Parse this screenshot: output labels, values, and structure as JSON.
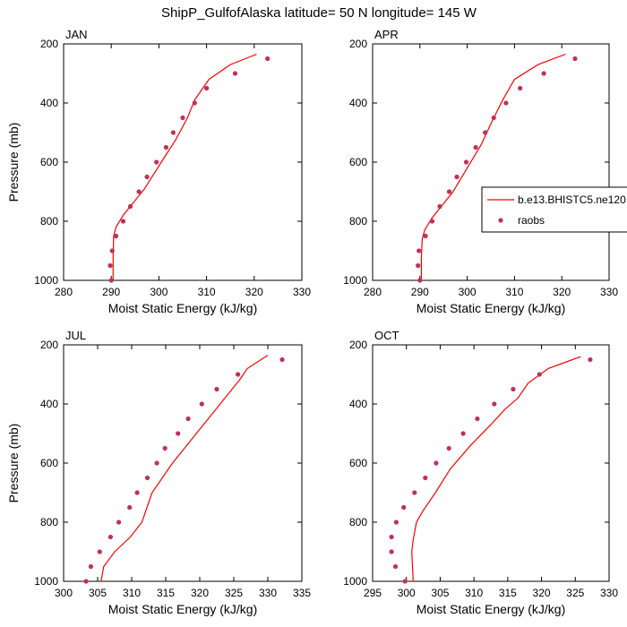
{
  "figure": {
    "title": "ShipP_GulfofAlaska  latitude= 50 N longitude= 145 W",
    "legend": {
      "entries": [
        {
          "label": "b.e13.BHISTC5.ne120",
          "style": "line",
          "color": "#ff0000"
        },
        {
          "label": "raobs",
          "style": "marker",
          "color": "#c0305a"
        }
      ]
    }
  },
  "chart_data": [
    {
      "type": "line",
      "panel": "JAN",
      "xlabel": "Moist Static Energy (kJ/kg)",
      "ylabel": "Pressure (mb)",
      "xlim": [
        280,
        330
      ],
      "ylim": [
        1000,
        200
      ],
      "xticks": [
        280,
        290,
        300,
        310,
        320,
        330
      ],
      "yticks": [
        200,
        400,
        600,
        800,
        1000
      ],
      "model": {
        "x": [
          290.4,
          290.4,
          290.5,
          291.0,
          292.5,
          294.5,
          297.0,
          300.5,
          303.5,
          306.0,
          307.5,
          310.5,
          315.0,
          320.5
        ],
        "y": [
          1000,
          925,
          850,
          820,
          780,
          740,
          690,
          600,
          525,
          450,
          390,
          320,
          270,
          235
        ]
      },
      "raobs": {
        "x": [
          290.0,
          289.8,
          290.2,
          291.0,
          292.5,
          294.0,
          295.8,
          297.5,
          299.5,
          301.5,
          303.0,
          305.0,
          307.5,
          310.0,
          316.0,
          322.8
        ],
        "y": [
          1000,
          950,
          900,
          850,
          800,
          750,
          700,
          650,
          600,
          550,
          500,
          450,
          400,
          350,
          300,
          250
        ]
      }
    },
    {
      "type": "line",
      "panel": "APR",
      "xlabel": "Moist Static Energy (kJ/kg)",
      "ylabel": "",
      "xlim": [
        280,
        330
      ],
      "ylim": [
        1000,
        200
      ],
      "xticks": [
        280,
        290,
        300,
        310,
        320,
        330
      ],
      "yticks": [
        200,
        400,
        600,
        800,
        1000
      ],
      "model": {
        "x": [
          290.3,
          290.3,
          290.5,
          291.0,
          292.5,
          294.5,
          297.0,
          300.0,
          303.0,
          305.0,
          307.5,
          310.0,
          315.0,
          320.8
        ],
        "y": [
          1000,
          925,
          860,
          830,
          790,
          750,
          700,
          620,
          540,
          470,
          390,
          320,
          270,
          235
        ]
      },
      "raobs": {
        "x": [
          290.0,
          289.6,
          289.8,
          291.2,
          292.6,
          294.2,
          296.2,
          297.8,
          299.8,
          301.8,
          303.8,
          305.6,
          308.2,
          311.2,
          316.2,
          322.8
        ],
        "y": [
          1000,
          950,
          900,
          850,
          800,
          750,
          700,
          650,
          600,
          550,
          500,
          450,
          400,
          350,
          300,
          250
        ]
      }
    },
    {
      "type": "line",
      "panel": "JUL",
      "xlabel": "Moist Static Energy (kJ/kg)",
      "ylabel": "Pressure (mb)",
      "xlim": [
        300,
        335
      ],
      "ylim": [
        1000,
        200
      ],
      "xticks": [
        300,
        305,
        310,
        315,
        320,
        325,
        330,
        335
      ],
      "yticks": [
        200,
        400,
        600,
        800,
        1000
      ],
      "model": {
        "x": [
          305.5,
          305.5,
          305.9,
          307.5,
          309.8,
          311.5,
          313.0,
          316.0,
          319.5,
          323.0,
          325.8,
          327.0,
          330.0
        ],
        "y": [
          1020,
          1000,
          950,
          900,
          850,
          800,
          700,
          600,
          500,
          400,
          320,
          280,
          235
        ]
      },
      "raobs": {
        "x": [
          303.3,
          304.0,
          305.3,
          306.9,
          308.1,
          309.7,
          310.8,
          312.3,
          313.7,
          314.9,
          316.8,
          318.3,
          320.3,
          322.5,
          325.6,
          332.1
        ],
        "y": [
          1000,
          950,
          900,
          850,
          800,
          750,
          700,
          650,
          600,
          550,
          500,
          450,
          400,
          350,
          300,
          250
        ]
      }
    },
    {
      "type": "line",
      "panel": "OCT",
      "xlabel": "Moist Static Energy (kJ/kg)",
      "ylabel": "",
      "xlim": [
        295,
        330
      ],
      "ylim": [
        1000,
        200
      ],
      "xticks": [
        295,
        300,
        305,
        310,
        315,
        320,
        325,
        330
      ],
      "yticks": [
        200,
        400,
        600,
        800,
        1000
      ],
      "model": {
        "x": [
          301.2,
          301.0,
          300.9,
          300.8,
          301.0,
          301.5,
          302.5,
          304.3,
          306.5,
          309.5,
          312.5,
          314.5,
          316.5,
          318.0,
          321.0,
          325.8
        ],
        "y": [
          1020,
          1000,
          950,
          900,
          860,
          800,
          760,
          700,
          620,
          540,
          470,
          420,
          380,
          330,
          280,
          240
        ]
      },
      "raobs": {
        "x": [
          299.8,
          298.4,
          297.8,
          297.8,
          298.5,
          299.6,
          301.2,
          302.8,
          304.4,
          306.3,
          308.4,
          310.5,
          313.0,
          315.8,
          319.7,
          327.2
        ],
        "y": [
          1000,
          950,
          900,
          850,
          800,
          750,
          700,
          650,
          600,
          550,
          500,
          450,
          400,
          350,
          300,
          250
        ]
      }
    }
  ]
}
